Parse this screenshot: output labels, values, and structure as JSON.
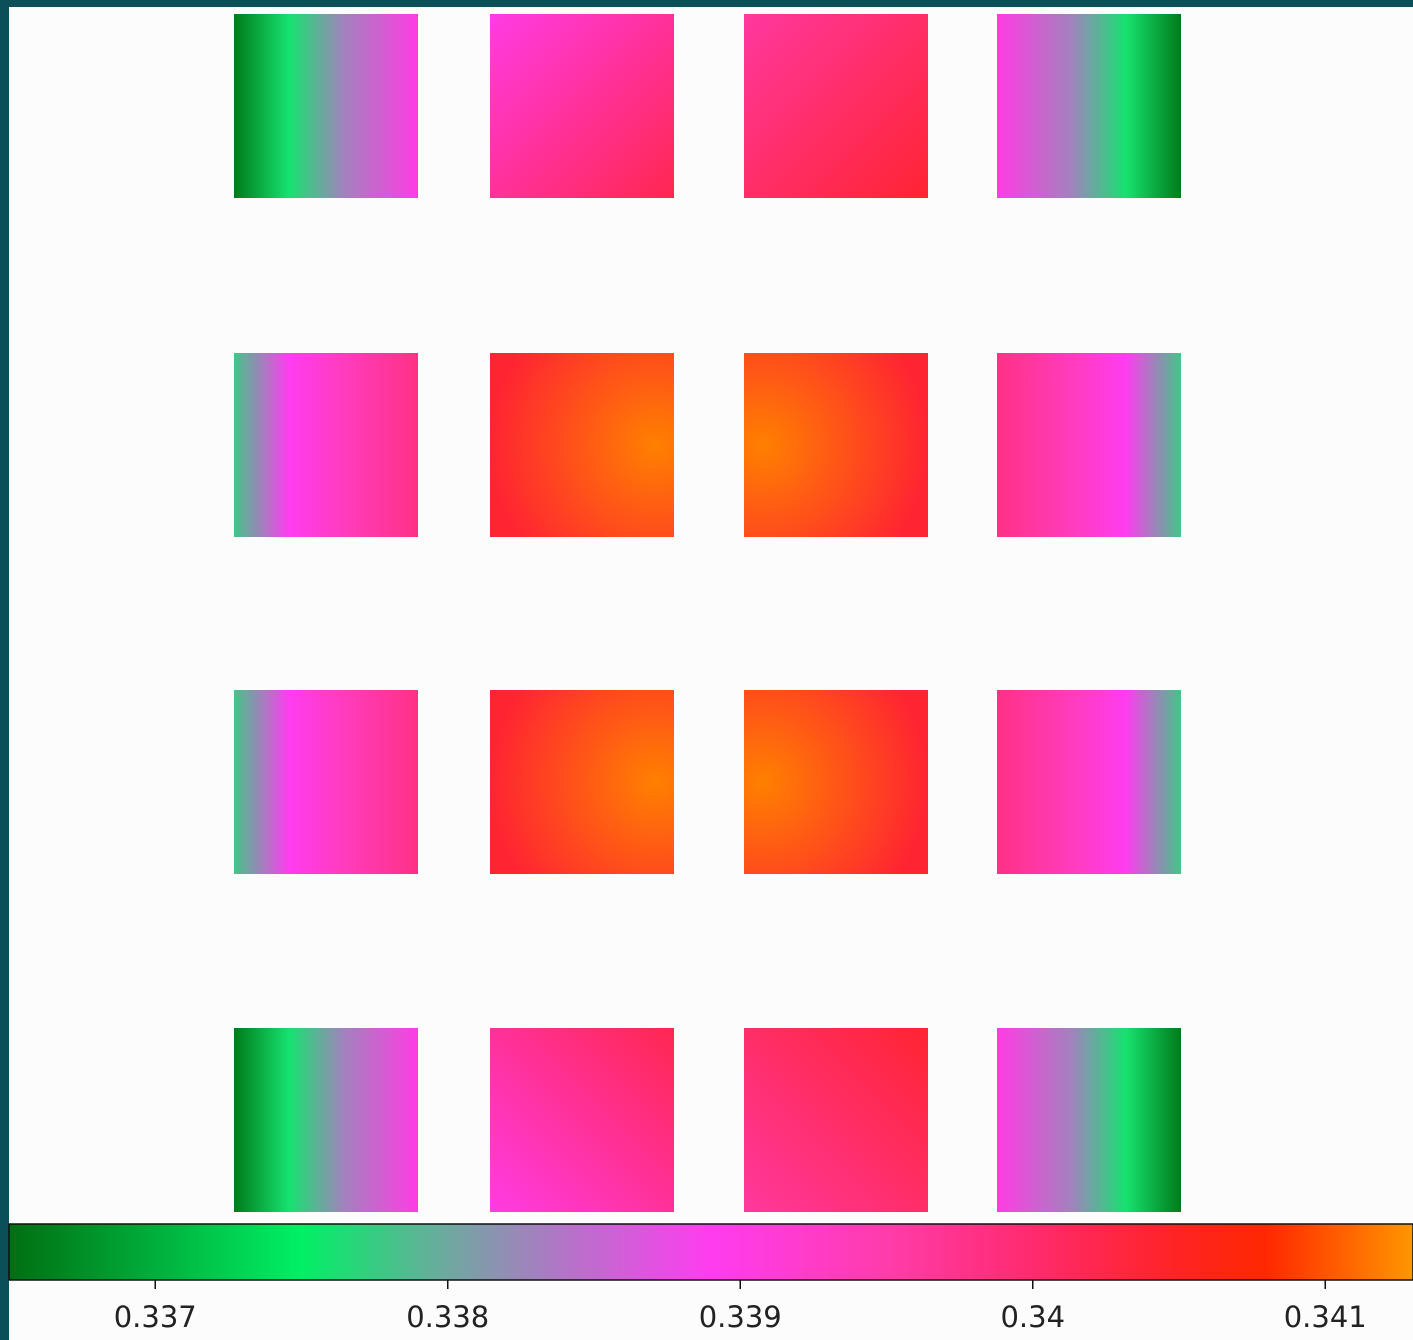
{
  "chart_data": {
    "type": "heatmap",
    "title": "",
    "xlabel": "",
    "ylabel": "",
    "grid": false,
    "legend": "none",
    "grid_rows": 4,
    "grid_cols": 4,
    "colorbar": {
      "orientation": "horizontal",
      "placement": "bottom",
      "range": [
        0.3365,
        0.3413
      ],
      "ticks": [
        0.337,
        0.338,
        0.339,
        0.34,
        0.341
      ],
      "tick_labels": [
        "0.337",
        "0.338",
        "0.339",
        "0.34",
        "0.341"
      ],
      "color_stops": [
        {
          "value": 0.3365,
          "color": "#006e12"
        },
        {
          "value": 0.3375,
          "color": "#00f064"
        },
        {
          "value": 0.338,
          "color": "#6fa8a0"
        },
        {
          "value": 0.3384,
          "color": "#b474c8"
        },
        {
          "value": 0.3389,
          "color": "#ff3cf0"
        },
        {
          "value": 0.3395,
          "color": "#ff3caa"
        },
        {
          "value": 0.34,
          "color": "#ff2a6e"
        },
        {
          "value": 0.3405,
          "color": "#ff2323"
        },
        {
          "value": 0.3408,
          "color": "#ff2800"
        },
        {
          "value": 0.3413,
          "color": "#ff9600"
        }
      ]
    },
    "cells": [
      {
        "row": 0,
        "col": 0,
        "axis": "h",
        "min": 0.3366,
        "peak": 0.3376,
        "max": 0.339
      },
      {
        "row": 0,
        "col": 1,
        "axis": "d",
        "min": 0.339,
        "max": 0.3402
      },
      {
        "row": 0,
        "col": 2,
        "axis": "d",
        "min": 0.3396,
        "max": 0.3404
      },
      {
        "row": 0,
        "col": 3,
        "axis": "h",
        "min": 0.3366,
        "peak": 0.3376,
        "max": 0.339,
        "flip": true
      },
      {
        "row": 1,
        "col": 0,
        "axis": "h",
        "min": 0.3378,
        "peak": 0.3389,
        "max": 0.3398
      },
      {
        "row": 1,
        "col": 1,
        "axis": "r",
        "min": 0.3404,
        "max": 0.3412
      },
      {
        "row": 1,
        "col": 2,
        "axis": "r",
        "min": 0.3404,
        "max": 0.3412,
        "flip": true
      },
      {
        "row": 1,
        "col": 3,
        "axis": "h",
        "min": 0.3378,
        "peak": 0.3389,
        "max": 0.3398,
        "flip": true
      },
      {
        "row": 2,
        "col": 0,
        "axis": "h",
        "min": 0.3378,
        "peak": 0.3389,
        "max": 0.3398
      },
      {
        "row": 2,
        "col": 1,
        "axis": "r",
        "min": 0.3404,
        "max": 0.3412
      },
      {
        "row": 2,
        "col": 2,
        "axis": "r",
        "min": 0.3404,
        "max": 0.3412,
        "flip": true
      },
      {
        "row": 2,
        "col": 3,
        "axis": "h",
        "min": 0.3378,
        "peak": 0.3389,
        "max": 0.3398,
        "flip": true
      },
      {
        "row": 3,
        "col": 0,
        "axis": "h",
        "min": 0.3366,
        "peak": 0.3376,
        "max": 0.339
      },
      {
        "row": 3,
        "col": 1,
        "axis": "d",
        "min": 0.339,
        "max": 0.3402
      },
      {
        "row": 3,
        "col": 2,
        "axis": "d",
        "min": 0.3396,
        "max": 0.3404
      },
      {
        "row": 3,
        "col": 3,
        "axis": "h",
        "min": 0.3366,
        "peak": 0.3376,
        "max": 0.339,
        "flip": true
      }
    ]
  }
}
